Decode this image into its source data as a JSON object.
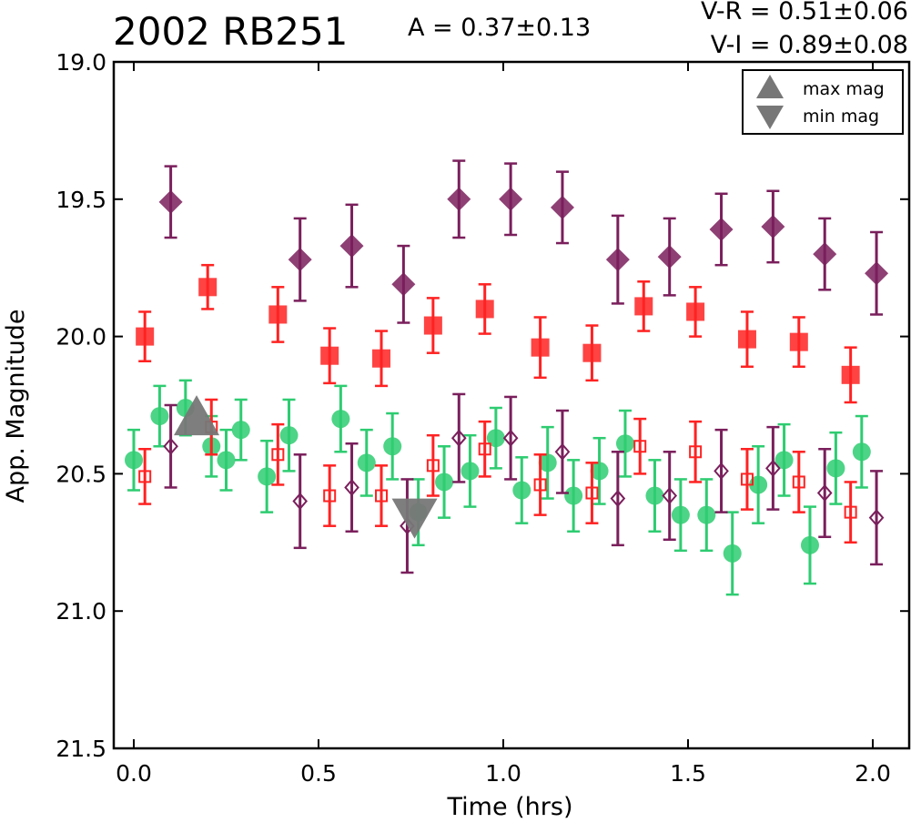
{
  "chart_data": {
    "type": "scatter",
    "title": "2002 RB251",
    "annotations": [
      "A  = 0.37±0.13",
      "V-R = 0.51±0.06",
      "V-I  = 0.89±0.08"
    ],
    "xlabel": "Time (hrs)",
    "ylabel": "App. Magnitude",
    "xlim": [
      -0.05,
      2.12
    ],
    "ylim": [
      21.5,
      19.0
    ],
    "y_inverted": true,
    "x_ticks": [
      "0.0",
      "0.5",
      "1.0",
      "1.5",
      "2.0"
    ],
    "x_tick_values": [
      0.0,
      0.5,
      1.0,
      1.5,
      2.0
    ],
    "y_ticks": [
      "19.0",
      "19.5",
      "20.0",
      "20.5",
      "21.0",
      "21.5"
    ],
    "y_tick_values": [
      19.0,
      19.5,
      20.0,
      20.5,
      21.0,
      21.5
    ],
    "legend": {
      "placement": "top-right",
      "entries": [
        {
          "label": "max mag",
          "marker": "triangle-up"
        },
        {
          "label": "min mag",
          "marker": "triangle-down"
        }
      ]
    },
    "colors": {
      "green": "#2ecc71",
      "red": "#ff2222",
      "purple": "#7a1f5c",
      "marker_grey": "#777777"
    },
    "series": [
      {
        "marker": "circle",
        "filled": true,
        "color": "#2ecc71",
        "x": [
          0.0,
          0.07,
          0.14,
          0.21,
          0.25,
          0.29,
          0.36,
          0.42,
          0.56,
          0.63,
          0.7,
          0.77,
          0.84,
          0.91,
          0.98,
          1.05,
          1.12,
          1.19,
          1.26,
          1.33,
          1.41,
          1.48,
          1.55,
          1.62,
          1.69,
          1.76,
          1.83,
          1.9,
          1.97
        ],
        "y": [
          20.45,
          20.29,
          20.26,
          20.4,
          20.45,
          20.34,
          20.51,
          20.36,
          20.3,
          20.46,
          20.4,
          20.64,
          20.53,
          20.49,
          20.37,
          20.56,
          20.46,
          20.58,
          20.49,
          20.39,
          20.58,
          20.65,
          20.65,
          20.79,
          20.54,
          20.45,
          20.76,
          20.48,
          20.42
        ],
        "err": [
          0.11,
          0.11,
          0.1,
          0.11,
          0.11,
          0.11,
          0.13,
          0.13,
          0.12,
          0.12,
          0.12,
          0.12,
          0.13,
          0.13,
          0.11,
          0.12,
          0.13,
          0.13,
          0.12,
          0.12,
          0.13,
          0.13,
          0.13,
          0.15,
          0.14,
          0.13,
          0.14,
          0.13,
          0.13
        ]
      },
      {
        "marker": "square",
        "filled": true,
        "color": "#ff2222",
        "x": [
          0.03,
          0.2,
          0.39,
          0.53,
          0.67,
          0.81,
          0.95,
          1.1,
          1.24,
          1.38,
          1.52,
          1.66,
          1.8,
          1.94
        ],
        "y": [
          20.0,
          19.82,
          19.92,
          20.07,
          20.08,
          19.96,
          19.9,
          20.04,
          20.06,
          19.89,
          19.91,
          20.01,
          20.02,
          20.14
        ],
        "err": [
          0.09,
          0.08,
          0.1,
          0.1,
          0.1,
          0.1,
          0.09,
          0.11,
          0.1,
          0.09,
          0.09,
          0.1,
          0.09,
          0.1
        ]
      },
      {
        "marker": "diamond",
        "filled": true,
        "color": "#7a1f5c",
        "x": [
          0.1,
          0.45,
          0.59,
          0.73,
          0.88,
          1.02,
          1.16,
          1.31,
          1.45,
          1.59,
          1.73,
          1.87,
          2.01
        ],
        "y": [
          19.51,
          19.72,
          19.67,
          19.81,
          19.5,
          19.5,
          19.53,
          19.72,
          19.71,
          19.61,
          19.6,
          19.7,
          19.77
        ],
        "err": [
          0.13,
          0.15,
          0.15,
          0.14,
          0.14,
          0.13,
          0.13,
          0.16,
          0.14,
          0.13,
          0.13,
          0.13,
          0.15
        ]
      },
      {
        "marker": "square",
        "filled": false,
        "color": "#ff2222",
        "x": [
          0.03,
          0.21,
          0.39,
          0.53,
          0.67,
          0.81,
          0.95,
          1.1,
          1.24,
          1.37,
          1.52,
          1.66,
          1.8,
          1.94
        ],
        "y": [
          20.51,
          20.33,
          20.43,
          20.58,
          20.58,
          20.47,
          20.41,
          20.54,
          20.57,
          20.4,
          20.42,
          20.52,
          20.53,
          20.64
        ],
        "err": [
          0.1,
          0.1,
          0.11,
          0.11,
          0.11,
          0.11,
          0.1,
          0.11,
          0.11,
          0.1,
          0.11,
          0.11,
          0.11,
          0.11
        ]
      },
      {
        "marker": "diamond",
        "filled": false,
        "color": "#7a1f5c",
        "x": [
          0.1,
          0.45,
          0.59,
          0.74,
          0.88,
          1.02,
          1.16,
          1.31,
          1.45,
          1.59,
          1.73,
          1.87,
          2.01
        ],
        "y": [
          20.4,
          20.6,
          20.55,
          20.69,
          20.37,
          20.37,
          20.42,
          20.59,
          20.58,
          20.49,
          20.48,
          20.57,
          20.66
        ],
        "err": [
          0.15,
          0.17,
          0.16,
          0.17,
          0.16,
          0.15,
          0.15,
          0.17,
          0.16,
          0.15,
          0.15,
          0.16,
          0.17
        ]
      }
    ],
    "extrema_markers": [
      {
        "label": "max mag",
        "marker": "triangle-up",
        "x": 0.17,
        "y": 20.3
      },
      {
        "label": "min mag",
        "marker": "triangle-down",
        "x": 0.76,
        "y": 20.65
      }
    ]
  }
}
